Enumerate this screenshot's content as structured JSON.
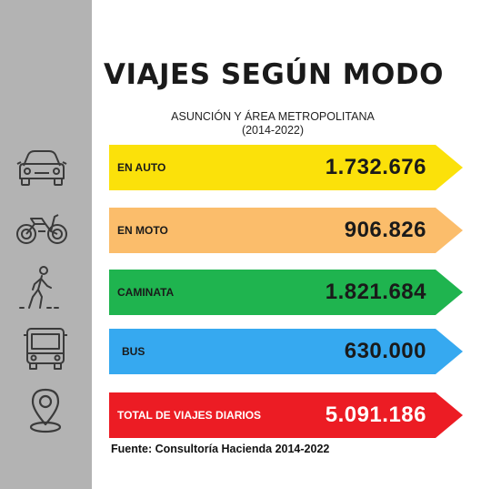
{
  "title": "VIAJES SEGÚN MODO",
  "subtitle_line1": "ASUNCIÓN Y ÁREA METROPOLITANA",
  "subtitle_line2": "(2014-2022)",
  "source": "Fuente: Consultoría Hacienda 2014-2022",
  "colors": {
    "sidebar": "#b3b3b3",
    "auto": "#fbe10a",
    "moto": "#fbbd6b",
    "caminata": "#1fb44f",
    "bus": "#36a9f0",
    "total": "#ec1c24"
  },
  "icons": [
    "car-icon",
    "motorcycle-icon",
    "walking-person-icon",
    "bus-icon",
    "location-pin-icon"
  ],
  "chart_data": {
    "type": "bar",
    "title": "VIAJES SEGÚN MODO",
    "subtitle": "ASUNCIÓN Y ÁREA METROPOLITANA (2014-2022)",
    "categories": [
      "EN AUTO",
      "EN MOTO",
      "CAMINATA",
      "BUS",
      "TOTAL DE VIAJES DIARIOS"
    ],
    "values": [
      1732676,
      906826,
      1821684,
      630000,
      5091186
    ],
    "display_values": [
      "1.732.676",
      "906.826",
      "1.821.684",
      "630.000",
      "5.091.186"
    ]
  }
}
